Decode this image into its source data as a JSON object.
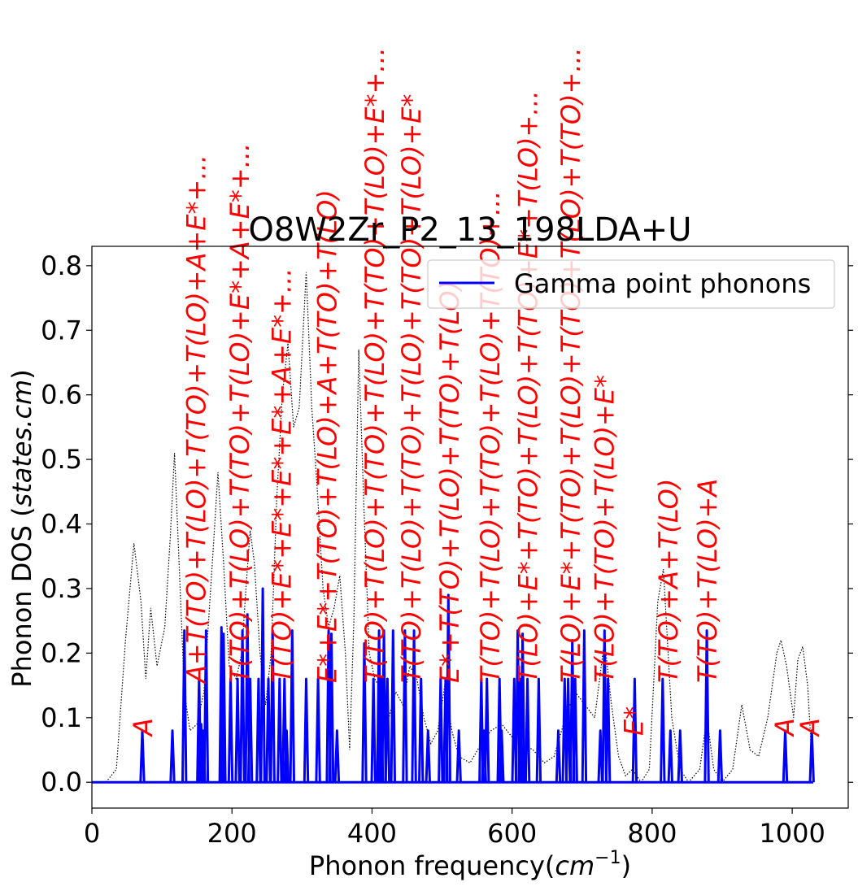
{
  "chart_data": {
    "type": "line",
    "title": "O8W2Zr_P2_13_198LDA+U",
    "xlabel": "Phonon frequency($cm^{-1}$)",
    "ylabel": "Phonon DOS ($states.cm$)",
    "xlim": [
      0,
      1080
    ],
    "ylim": [
      -0.04,
      0.83
    ],
    "x_ticks": [
      0,
      200,
      400,
      600,
      800,
      1000
    ],
    "y_ticks": [
      0.0,
      0.1,
      0.2,
      0.3,
      0.4,
      0.5,
      0.6,
      0.7,
      0.8
    ],
    "x_tick_labels": [
      "0",
      "200",
      "400",
      "600",
      "800",
      "1000"
    ],
    "y_tick_labels": [
      "0.0",
      "0.1",
      "0.2",
      "0.3",
      "0.4",
      "0.5",
      "0.6",
      "0.7",
      "0.8"
    ],
    "legend": {
      "position": "top-right",
      "entries": [
        "Gamma point phonons"
      ]
    },
    "colors": {
      "gamma": "#0000ff",
      "dos": "#000000",
      "annotation": "#ff0000"
    },
    "series": [
      {
        "name": "Gamma point phonons",
        "style": "solid",
        "peaks": [
          [
            72,
            0.08
          ],
          [
            115,
            0.08
          ],
          [
            132,
            0.235
          ],
          [
            153,
            0.16
          ],
          [
            156,
            0.09
          ],
          [
            159,
            0.08
          ],
          [
            163,
            0.235
          ],
          [
            185,
            0.24
          ],
          [
            188,
            0.23
          ],
          [
            198,
            0.16
          ],
          [
            208,
            0.16
          ],
          [
            215,
            0.235
          ],
          [
            222,
            0.26
          ],
          [
            226,
            0.16
          ],
          [
            238,
            0.16
          ],
          [
            244,
            0.3
          ],
          [
            252,
            0.16
          ],
          [
            258,
            0.235
          ],
          [
            268,
            0.16
          ],
          [
            275,
            0.16
          ],
          [
            278,
            0.08
          ],
          [
            286,
            0.235
          ],
          [
            306,
            0.16
          ],
          [
            323,
            0.16
          ],
          [
            338,
            0.235
          ],
          [
            342,
            0.23
          ],
          [
            350,
            0.08
          ],
          [
            389,
            0.215
          ],
          [
            402,
            0.16
          ],
          [
            410,
            0.235
          ],
          [
            413,
            0.16
          ],
          [
            417,
            0.235
          ],
          [
            422,
            0.16
          ],
          [
            430,
            0.235
          ],
          [
            447,
            0.235
          ],
          [
            460,
            0.235
          ],
          [
            470,
            0.16
          ],
          [
            480,
            0.08
          ],
          [
            498,
            0.16
          ],
          [
            505,
            0.16
          ],
          [
            509,
            0.29
          ],
          [
            524,
            0.08
          ],
          [
            556,
            0.16
          ],
          [
            560,
            0.08
          ],
          [
            564,
            0.16
          ],
          [
            582,
            0.16
          ],
          [
            585,
            0.08
          ],
          [
            603,
            0.16
          ],
          [
            608,
            0.235
          ],
          [
            612,
            0.16
          ],
          [
            615,
            0.23
          ],
          [
            622,
            0.16
          ],
          [
            638,
            0.16
          ],
          [
            666,
            0.08
          ],
          [
            675,
            0.16
          ],
          [
            680,
            0.16
          ],
          [
            686,
            0.22
          ],
          [
            690,
            0.16
          ],
          [
            703,
            0.235
          ],
          [
            726,
            0.08
          ],
          [
            732,
            0.235
          ],
          [
            737,
            0.16
          ],
          [
            775,
            0.16
          ],
          [
            815,
            0.16
          ],
          [
            826,
            0.08
          ],
          [
            840,
            0.08
          ],
          [
            878,
            0.235
          ],
          [
            897,
            0.08
          ],
          [
            990,
            0.08
          ],
          [
            1028,
            0.08
          ]
        ]
      },
      {
        "name": "",
        "style": "dotted",
        "points": [
          [
            0,
            0.0
          ],
          [
            20,
            0.0
          ],
          [
            35,
            0.02
          ],
          [
            48,
            0.22
          ],
          [
            60,
            0.37
          ],
          [
            70,
            0.28
          ],
          [
            77,
            0.16
          ],
          [
            84,
            0.27
          ],
          [
            93,
            0.18
          ],
          [
            104,
            0.24
          ],
          [
            112,
            0.38
          ],
          [
            118,
            0.51
          ],
          [
            126,
            0.3
          ],
          [
            132,
            0.14
          ],
          [
            140,
            0.08
          ],
          [
            150,
            0.09
          ],
          [
            160,
            0.14
          ],
          [
            172,
            0.34
          ],
          [
            180,
            0.48
          ],
          [
            188,
            0.34
          ],
          [
            196,
            0.18
          ],
          [
            206,
            0.16
          ],
          [
            214,
            0.2
          ],
          [
            220,
            0.3
          ],
          [
            226,
            0.39
          ],
          [
            232,
            0.34
          ],
          [
            240,
            0.2
          ],
          [
            248,
            0.12
          ],
          [
            256,
            0.2
          ],
          [
            264,
            0.44
          ],
          [
            272,
            0.6
          ],
          [
            280,
            0.68
          ],
          [
            288,
            0.55
          ],
          [
            296,
            0.58
          ],
          [
            306,
            0.79
          ],
          [
            314,
            0.58
          ],
          [
            322,
            0.45
          ],
          [
            330,
            0.3
          ],
          [
            338,
            0.24
          ],
          [
            346,
            0.27
          ],
          [
            354,
            0.32
          ],
          [
            362,
            0.2
          ],
          [
            368,
            0.05
          ],
          [
            374,
            0.25
          ],
          [
            381,
            0.67
          ],
          [
            388,
            0.44
          ],
          [
            396,
            0.2
          ],
          [
            404,
            0.16
          ],
          [
            414,
            0.14
          ],
          [
            424,
            0.1
          ],
          [
            434,
            0.14
          ],
          [
            444,
            0.12
          ],
          [
            454,
            0.18
          ],
          [
            464,
            0.16
          ],
          [
            474,
            0.1
          ],
          [
            484,
            0.06
          ],
          [
            494,
            0.08
          ],
          [
            504,
            0.15
          ],
          [
            514,
            0.08
          ],
          [
            524,
            0.04
          ],
          [
            540,
            0.03
          ],
          [
            556,
            0.06
          ],
          [
            570,
            0.08
          ],
          [
            585,
            0.09
          ],
          [
            600,
            0.07
          ],
          [
            615,
            0.06
          ],
          [
            630,
            0.05
          ],
          [
            646,
            0.03
          ],
          [
            660,
            0.04
          ],
          [
            676,
            0.1
          ],
          [
            690,
            0.14
          ],
          [
            704,
            0.12
          ],
          [
            718,
            0.1
          ],
          [
            732,
            0.22
          ],
          [
            742,
            0.12
          ],
          [
            752,
            0.04
          ],
          [
            762,
            0.01
          ],
          [
            772,
            0.02
          ],
          [
            784,
            0.0
          ],
          [
            796,
            0.02
          ],
          [
            808,
            0.28
          ],
          [
            816,
            0.33
          ],
          [
            828,
            0.1
          ],
          [
            840,
            0.02
          ],
          [
            852,
            0.0
          ],
          [
            868,
            0.02
          ],
          [
            878,
            0.1
          ],
          [
            888,
            0.02
          ],
          [
            900,
            0.0
          ],
          [
            915,
            0.02
          ],
          [
            928,
            0.12
          ],
          [
            940,
            0.05
          ],
          [
            952,
            0.04
          ],
          [
            965,
            0.1
          ],
          [
            978,
            0.2
          ],
          [
            984,
            0.22
          ],
          [
            992,
            0.18
          ],
          [
            1002,
            0.1
          ],
          [
            1008,
            0.19
          ],
          [
            1015,
            0.21
          ],
          [
            1022,
            0.15
          ],
          [
            1030,
            0.0
          ]
        ]
      }
    ],
    "annotations": [
      {
        "x": 72,
        "text": "A"
      },
      {
        "x": 148,
        "text": "A+T(TO)+T(LO)+T(TO)+T(LO)+A+E*+..."
      },
      {
        "x": 210,
        "text": "T(TO)+T(LO)+T(TO)+T(LO)+E*+A+E*+..."
      },
      {
        "x": 270,
        "text": "T(TO)+E*+E*+E*+E*+A+E*+..."
      },
      {
        "x": 335,
        "text": "E*+E*+T(TO)+T(LO)+A+T(TO)+T(LO)"
      },
      {
        "x": 403,
        "text": "T(TO)+T(LO)+T(TO)+T(LO)+T(TO)+T(LO)+E*+..."
      },
      {
        "x": 455,
        "text": "T(TO)+T(LO)+T(TO)+T(LO)+T(TO)+T(LO)+E*"
      },
      {
        "x": 510,
        "text": "E*+T(TO)+T(LO)+T(TO)+T(LO)"
      },
      {
        "x": 568,
        "text": "T(TO)+T(LO)+T(TO)+T(LO)+T(TO)+..."
      },
      {
        "x": 622,
        "text": "T(LO)+E*+T(TO)+T(LO)+T(TO)+E*+T(LO)+..."
      },
      {
        "x": 683,
        "text": "T(LO)+E*+T(TO)+T(LO)+T(TO)+T(LO)+T(TO)+..."
      },
      {
        "x": 731,
        "text": "T(LO)+T(TO)+T(LO)+E*"
      },
      {
        "x": 773,
        "text": "E*"
      },
      {
        "x": 822,
        "text": "T(TO)+A+T(LO)"
      },
      {
        "x": 878,
        "text": "T(TO)+T(LO)+A"
      },
      {
        "x": 988,
        "text": "A"
      },
      {
        "x": 1024,
        "text": "A"
      }
    ]
  }
}
